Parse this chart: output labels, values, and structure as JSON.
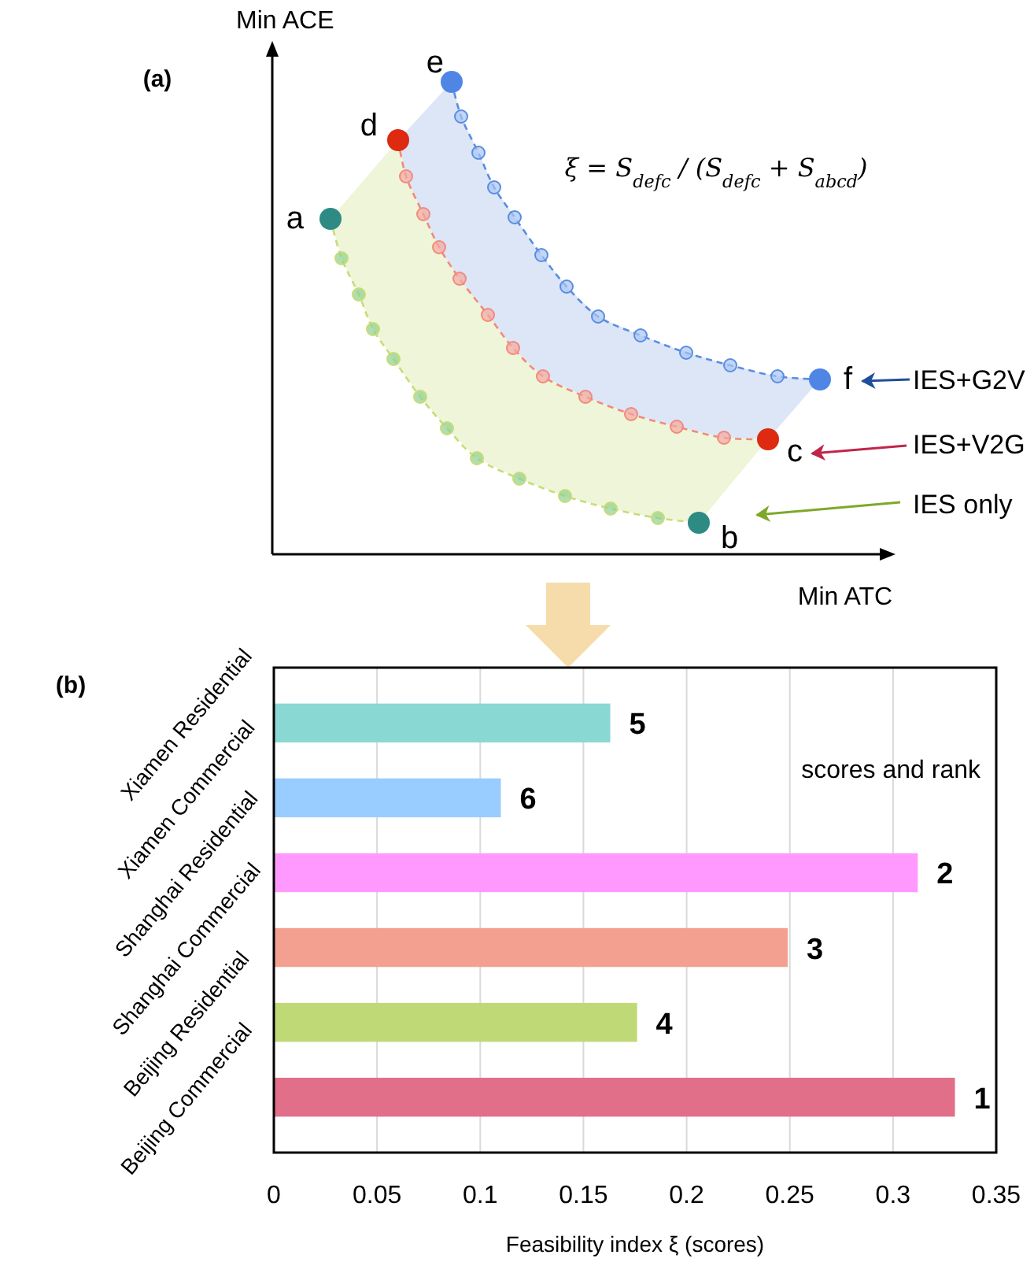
{
  "chart_data": [
    {
      "type": "other",
      "title": "(a)",
      "xlabel": "Min ATC",
      "ylabel": "Min ACE",
      "annotations": [
        "a",
        "b",
        "c",
        "d",
        "e",
        "f",
        "ξ = S$_{defc}$ / (S$_{defc}$ + S$_{abcd}$)",
        "IES+G2V",
        "IES+V2G",
        "IES only"
      ]
    },
    {
      "type": "bar",
      "orientation": "horizontal",
      "title": "(b)",
      "xlabel": "Feasibility index ξ  (scores)",
      "categories": [
        "Xiamen Residential",
        "Xiamen Commercial",
        "Shanghai Residential",
        "Shanghai Commercial",
        "Beijing Residential",
        "Beijing Commercial"
      ],
      "values": [
        0.163,
        0.11,
        0.312,
        0.249,
        0.176,
        0.33
      ],
      "colors": [
        "#8ad8d4",
        "#99ccff",
        "#ff99ff",
        "#f4a090",
        "#c0d977",
        "#e26f8a"
      ],
      "xlim": [
        0,
        0.35
      ],
      "xticks": [
        0,
        0.05,
        0.1,
        0.15,
        0.2,
        0.25,
        0.3,
        0.35
      ],
      "grid": "x",
      "annotations": [
        "scores and rank",
        {
          "text": "5",
          "x": 0.163,
          "y": "Xiamen Residential"
        },
        {
          "text": "6",
          "x": 0.11,
          "y": "Xiamen Commercial"
        },
        {
          "text": "2",
          "x": 0.312,
          "y": "Shanghai Residential"
        },
        {
          "text": "3",
          "x": 0.249,
          "y": "Shanghai Commercial"
        },
        {
          "text": "4",
          "x": 0.176,
          "y": "Beijing Residential"
        },
        {
          "text": "1",
          "x": 0.33,
          "y": "Beijing Commercial"
        }
      ]
    }
  ]
}
